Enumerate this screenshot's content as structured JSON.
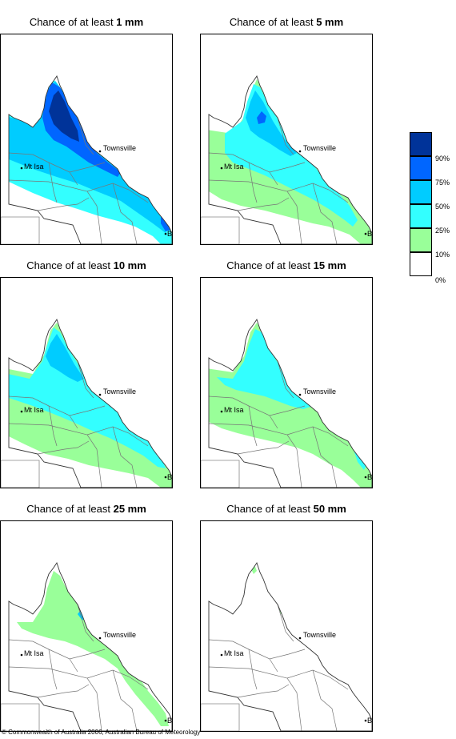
{
  "panels": [
    {
      "title_prefix": "Chance of at least ",
      "amount": "1 mm",
      "level": 0
    },
    {
      "title_prefix": "Chance of at least ",
      "amount": "5 mm",
      "level": 1
    },
    {
      "title_prefix": "Chance of at least ",
      "amount": "10 mm",
      "level": 2
    },
    {
      "title_prefix": "Chance of at least ",
      "amount": "15 mm",
      "level": 3
    },
    {
      "title_prefix": "Chance of at least ",
      "amount": "25 mm",
      "level": 4
    },
    {
      "title_prefix": "Chance of at least ",
      "amount": "50 mm",
      "level": 5
    }
  ],
  "cities": {
    "townsville": "Townsville",
    "mt_isa": "Mt Isa",
    "brisbane": "BRIS"
  },
  "legend": {
    "labels": [
      "90%",
      "75%",
      "50%",
      "25%",
      "10%",
      "0%"
    ],
    "colors": [
      "#003399",
      "#0066ff",
      "#00ccff",
      "#33ffff",
      "#99ff99",
      "#ffffff"
    ]
  },
  "copyright": "© Commonwealth of Australia 2006, Australian Bureau of Meteorology"
}
